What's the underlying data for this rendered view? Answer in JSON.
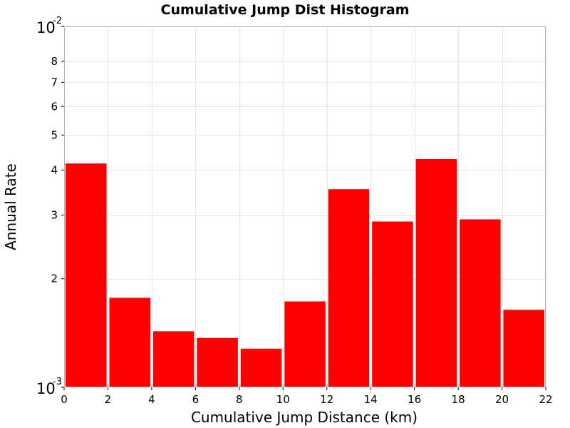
{
  "chart_data": {
    "type": "bar",
    "title": "Cumulative Jump Dist Histogram",
    "xlabel": "Cumulative Jump Distance (km)",
    "ylabel": "Annual Rate",
    "x_scale": "linear",
    "y_scale": "log",
    "xlim": [
      0,
      22
    ],
    "ylim": [
      0.001,
      0.01
    ],
    "grid": true,
    "bar_color": "#ff0000",
    "x_ticks": [
      0,
      2,
      4,
      6,
      8,
      10,
      12,
      14,
      16,
      18,
      20,
      22
    ],
    "y_minor_ticks": [
      {
        "value": 0.002,
        "label": "2"
      },
      {
        "value": 0.003,
        "label": "3"
      },
      {
        "value": 0.004,
        "label": "4"
      },
      {
        "value": 0.005,
        "label": "5"
      },
      {
        "value": 0.006,
        "label": "6"
      },
      {
        "value": 0.007,
        "label": "7"
      },
      {
        "value": 0.008,
        "label": "8"
      }
    ],
    "y_decade_ticks": [
      {
        "value": 0.001,
        "base": "10",
        "exponent": "-3"
      },
      {
        "value": 0.01,
        "base": "10",
        "exponent": "-2"
      }
    ],
    "bins": [
      {
        "x0": 0,
        "x1": 2,
        "value": 0.00417
      },
      {
        "x0": 2,
        "x1": 4,
        "value": 0.00177
      },
      {
        "x0": 4,
        "x1": 6,
        "value": 0.00143
      },
      {
        "x0": 6,
        "x1": 8,
        "value": 0.00137
      },
      {
        "x0": 8,
        "x1": 10,
        "value": 0.00128
      },
      {
        "x0": 10,
        "x1": 12,
        "value": 0.00173
      },
      {
        "x0": 12,
        "x1": 14,
        "value": 0.00354
      },
      {
        "x0": 14,
        "x1": 16,
        "value": 0.00288
      },
      {
        "x0": 16,
        "x1": 18,
        "value": 0.00429
      },
      {
        "x0": 18,
        "x1": 20,
        "value": 0.00292
      },
      {
        "x0": 20,
        "x1": 22,
        "value": 0.00164
      }
    ]
  }
}
